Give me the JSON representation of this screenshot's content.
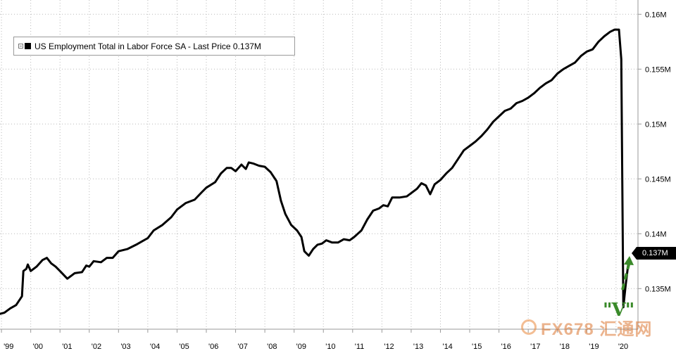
{
  "chart_data": {
    "type": "line",
    "legend": {
      "label": "US Employment Total in Labor Force SA - Last Price 0.137M",
      "toggle_icon": "collapse-box-icon"
    },
    "last_price_label": "0.137M",
    "annotation": "\"V\"",
    "annotation_color": "#3a8a2a",
    "line_color": "#000000",
    "y_ticks": [
      "0.135M",
      "0.14M",
      "0.145M",
      "0.15M",
      "0.155M",
      "0.16M"
    ],
    "y_tick_values": [
      0.135,
      0.14,
      0.145,
      0.15,
      0.155,
      0.16
    ],
    "ylim": [
      0.1313,
      0.1613
    ],
    "x_ticks": [
      "'99",
      "'00",
      "'01",
      "'02",
      "'03",
      "'04",
      "'05",
      "'06",
      "'07",
      "'08",
      "'09",
      "'10",
      "'11",
      "'12",
      "'13",
      "'14",
      "'15",
      "'16",
      "'17",
      "'18",
      "'19",
      "'20"
    ],
    "x_tick_years": [
      1999,
      2000,
      2001,
      2002,
      2003,
      2004,
      2005,
      2006,
      2007,
      2008,
      2009,
      2010,
      2011,
      2012,
      2013,
      2014,
      2015,
      2016,
      2017,
      2018,
      2019,
      2020
    ],
    "xlim": [
      1998.95,
      2020.75
    ],
    "grid": true,
    "grid_style": "dotted",
    "legend_position": "top-left",
    "series": [
      {
        "values": [
          [
            1998.95,
            0.1327
          ],
          [
            1999.1,
            0.1328
          ],
          [
            1999.3,
            0.1332
          ],
          [
            1999.5,
            0.1335
          ],
          [
            1999.7,
            0.1343
          ],
          [
            1999.75,
            0.1366
          ],
          [
            1999.85,
            0.1368
          ],
          [
            1999.9,
            0.1372
          ],
          [
            2000.0,
            0.1366
          ],
          [
            2000.2,
            0.137
          ],
          [
            2000.4,
            0.1376
          ],
          [
            2000.55,
            0.1378
          ],
          [
            2000.7,
            0.1373
          ],
          [
            2000.85,
            0.137
          ],
          [
            2001.0,
            0.1366
          ],
          [
            2001.25,
            0.1359
          ],
          [
            2001.5,
            0.1364
          ],
          [
            2001.75,
            0.1365
          ],
          [
            2001.9,
            0.1371
          ],
          [
            2002.0,
            0.137
          ],
          [
            2002.15,
            0.1375
          ],
          [
            2002.4,
            0.1374
          ],
          [
            2002.6,
            0.1378
          ],
          [
            2002.8,
            0.1378
          ],
          [
            2003.0,
            0.1384
          ],
          [
            2003.3,
            0.1386
          ],
          [
            2003.6,
            0.139
          ],
          [
            2003.8,
            0.1393
          ],
          [
            2004.0,
            0.1396
          ],
          [
            2004.2,
            0.1403
          ],
          [
            2004.5,
            0.1408
          ],
          [
            2004.8,
            0.1415
          ],
          [
            2005.0,
            0.1422
          ],
          [
            2005.3,
            0.1428
          ],
          [
            2005.6,
            0.1431
          ],
          [
            2005.85,
            0.1438
          ],
          [
            2006.0,
            0.1442
          ],
          [
            2006.3,
            0.1447
          ],
          [
            2006.5,
            0.1455
          ],
          [
            2006.7,
            0.146
          ],
          [
            2006.85,
            0.146
          ],
          [
            2007.0,
            0.1457
          ],
          [
            2007.2,
            0.1463
          ],
          [
            2007.35,
            0.1459
          ],
          [
            2007.45,
            0.1465
          ],
          [
            2007.6,
            0.1464
          ],
          [
            2007.8,
            0.1462
          ],
          [
            2008.0,
            0.1461
          ],
          [
            2008.2,
            0.1456
          ],
          [
            2008.4,
            0.1448
          ],
          [
            2008.55,
            0.143
          ],
          [
            2008.7,
            0.1418
          ],
          [
            2008.9,
            0.1408
          ],
          [
            2009.1,
            0.1403
          ],
          [
            2009.25,
            0.1397
          ],
          [
            2009.35,
            0.1384
          ],
          [
            2009.5,
            0.138
          ],
          [
            2009.65,
            0.1386
          ],
          [
            2009.8,
            0.139
          ],
          [
            2009.95,
            0.1391
          ],
          [
            2010.1,
            0.1394
          ],
          [
            2010.3,
            0.1392
          ],
          [
            2010.5,
            0.1392
          ],
          [
            2010.7,
            0.1395
          ],
          [
            2010.9,
            0.1394
          ],
          [
            2011.05,
            0.1397
          ],
          [
            2011.3,
            0.1403
          ],
          [
            2011.5,
            0.1413
          ],
          [
            2011.7,
            0.1421
          ],
          [
            2011.9,
            0.1423
          ],
          [
            2012.05,
            0.1426
          ],
          [
            2012.2,
            0.1425
          ],
          [
            2012.35,
            0.1433
          ],
          [
            2012.6,
            0.1433
          ],
          [
            2012.85,
            0.1434
          ],
          [
            2013.0,
            0.1437
          ],
          [
            2013.2,
            0.1441
          ],
          [
            2013.35,
            0.1446
          ],
          [
            2013.5,
            0.1444
          ],
          [
            2013.65,
            0.1436
          ],
          [
            2013.8,
            0.1445
          ],
          [
            2014.0,
            0.1449
          ],
          [
            2014.2,
            0.1455
          ],
          [
            2014.4,
            0.146
          ],
          [
            2014.6,
            0.1468
          ],
          [
            2014.8,
            0.1476
          ],
          [
            2015.0,
            0.148
          ],
          [
            2015.2,
            0.1484
          ],
          [
            2015.4,
            0.1489
          ],
          [
            2015.6,
            0.1495
          ],
          [
            2015.8,
            0.1502
          ],
          [
            2016.0,
            0.1507
          ],
          [
            2016.2,
            0.1512
          ],
          [
            2016.4,
            0.1514
          ],
          [
            2016.6,
            0.1519
          ],
          [
            2016.8,
            0.1521
          ],
          [
            2017.0,
            0.1524
          ],
          [
            2017.2,
            0.1528
          ],
          [
            2017.4,
            0.1533
          ],
          [
            2017.6,
            0.1537
          ],
          [
            2017.8,
            0.154
          ],
          [
            2018.0,
            0.1546
          ],
          [
            2018.2,
            0.155
          ],
          [
            2018.4,
            0.1553
          ],
          [
            2018.6,
            0.1556
          ],
          [
            2018.8,
            0.1562
          ],
          [
            2019.0,
            0.1566
          ],
          [
            2019.2,
            0.1568
          ],
          [
            2019.4,
            0.1575
          ],
          [
            2019.6,
            0.158
          ],
          [
            2019.8,
            0.1584
          ],
          [
            2019.95,
            0.1586
          ],
          [
            2020.1,
            0.1586
          ],
          [
            2020.18,
            0.1559
          ],
          [
            2020.25,
            0.1333
          ],
          [
            2020.33,
            0.1353
          ],
          [
            2020.42,
            0.1373
          ]
        ]
      }
    ]
  }
}
